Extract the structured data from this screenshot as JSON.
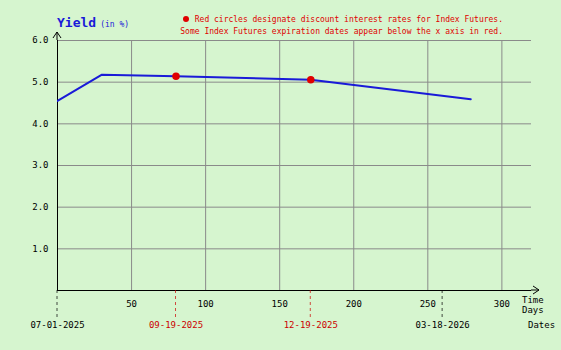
{
  "chart_data": {
    "type": "line",
    "title": "Yield",
    "subtitle": "(in %)",
    "annotations": [
      "Red circles designate discount interest rates for Index Futures.",
      "Some Index Futures expiration dates appear below the x axis in red."
    ],
    "xlabel": "Time Days",
    "date_label": "Dates",
    "x": [
      0,
      30,
      80,
      171,
      279
    ],
    "values": [
      4.55,
      5.18,
      5.14,
      5.06,
      4.59
    ],
    "color": "#1a1ad8",
    "line_style": "solid",
    "markers": {
      "x": [
        80,
        171
      ],
      "values": [
        5.14,
        5.06
      ],
      "color": "#e00000",
      "marker": "circle"
    },
    "dates": {
      "x": [
        0,
        80,
        171,
        260
      ],
      "labels": [
        "07-01-2025",
        "09-19-2025",
        "12-19-2025",
        "03-18-2026"
      ],
      "colors": [
        "#000000",
        "#cc0000",
        "#cc0000",
        "#000000"
      ]
    },
    "xlim": [
      0,
      320
    ],
    "xticks": [
      50,
      100,
      150,
      200,
      250,
      300
    ],
    "ylim": [
      0,
      6
    ],
    "yticks": [
      {
        "value": 1,
        "label": "1.0"
      },
      {
        "value": 2,
        "label": "2.0"
      },
      {
        "value": 3,
        "label": "3.0"
      },
      {
        "value": 4,
        "label": "4.0"
      },
      {
        "value": 5,
        "label": "5.0"
      },
      {
        "value": 6,
        "label": "6.0"
      }
    ],
    "grid": true
  }
}
